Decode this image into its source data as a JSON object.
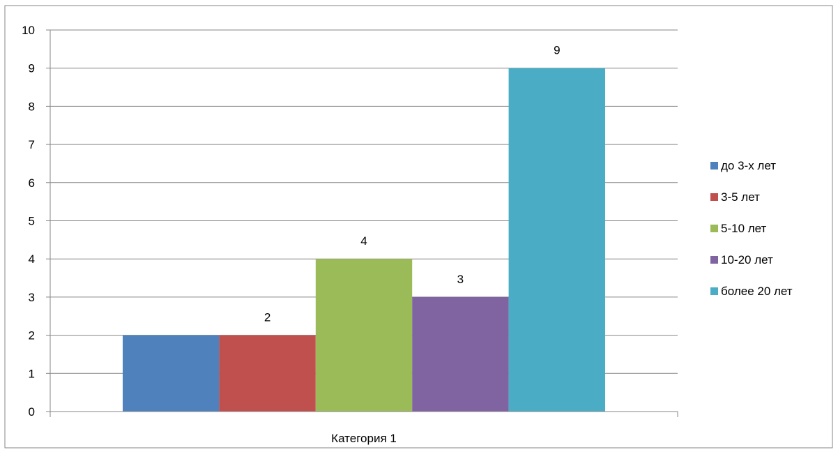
{
  "chart_data": {
    "type": "bar",
    "categories": [
      "Категория 1"
    ],
    "series": [
      {
        "name": "до 3-х лет",
        "values": [
          2
        ],
        "color": "#4F81BD",
        "data_label": ""
      },
      {
        "name": "3-5 лет",
        "values": [
          2
        ],
        "color": "#C0504D",
        "data_label": "2"
      },
      {
        "name": "5-10 лет",
        "values": [
          4
        ],
        "color": "#9BBB59",
        "data_label": "4"
      },
      {
        "name": "10-20 лет",
        "values": [
          3
        ],
        "color": "#8064A2",
        "data_label": "3"
      },
      {
        "name": "более 20 лет",
        "values": [
          9
        ],
        "color": "#4BACC6",
        "data_label": "9"
      }
    ],
    "ylim": [
      0,
      10
    ],
    "y_ticks": [
      "0",
      "1",
      "2",
      "3",
      "4",
      "5",
      "6",
      "7",
      "8",
      "9",
      "10"
    ],
    "grid": true,
    "legend_position": "right",
    "gridline_color": "#868686",
    "axis_color": "#868686",
    "border_color": "#868686"
  }
}
